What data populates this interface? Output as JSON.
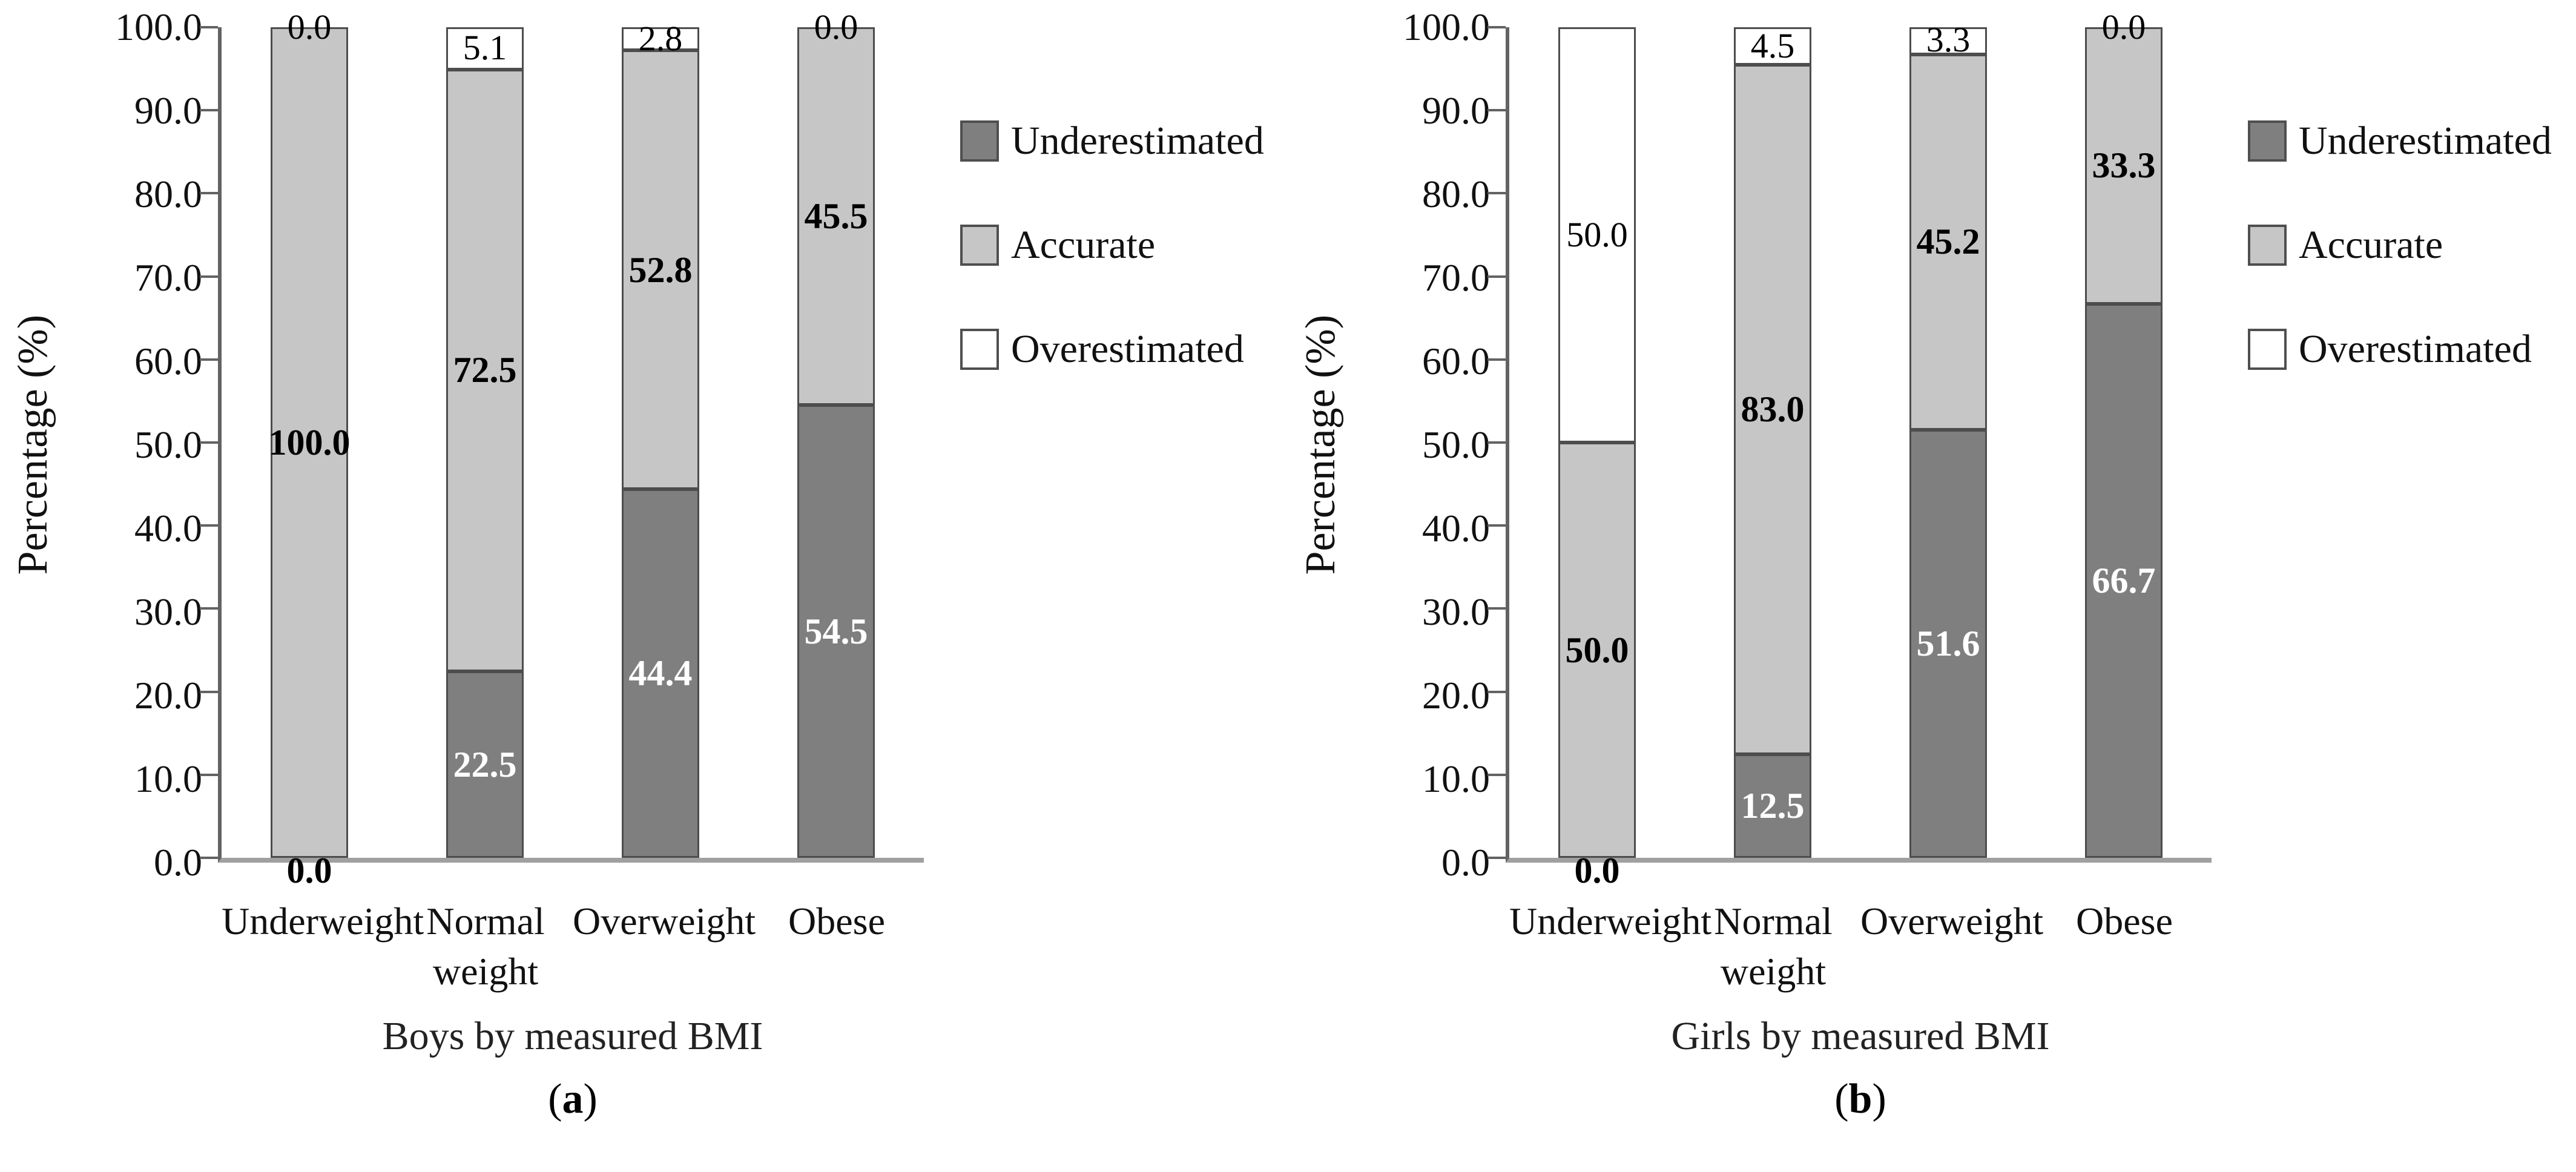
{
  "chart_data": [
    {
      "type": "bar",
      "stacked": true,
      "panel": "a",
      "title": "Boys by measured BMI",
      "caption_prefix": "(",
      "caption_letter": "a",
      "caption_suffix": ")",
      "ylabel": "Percentage (%)",
      "ylim": [
        0,
        100
      ],
      "grid": false,
      "legend_position": "right",
      "yticks": [
        "0.0",
        "10.0",
        "20.0",
        "30.0",
        "40.0",
        "50.0",
        "60.0",
        "70.0",
        "80.0",
        "90.0",
        "100.0"
      ],
      "categories": [
        "Underweight",
        "Normal weight",
        "Overweight",
        "Obese"
      ],
      "series": [
        {
          "name": "Underestimated",
          "key": "under",
          "color": "#7f7f7f",
          "values": [
            0.0,
            22.5,
            44.4,
            54.5
          ]
        },
        {
          "name": "Accurate",
          "key": "acc",
          "color": "#c6c6c6",
          "values": [
            100.0,
            72.5,
            52.8,
            45.5
          ]
        },
        {
          "name": "Overestimated",
          "key": "over",
          "color": "#ffffff",
          "values": [
            0.0,
            5.1,
            2.8,
            0.0
          ]
        }
      ]
    },
    {
      "type": "bar",
      "stacked": true,
      "panel": "b",
      "title": "Girls by measured BMI",
      "caption_prefix": "(",
      "caption_letter": "b",
      "caption_suffix": ")",
      "ylabel": "Percentage (%)",
      "ylim": [
        0,
        100
      ],
      "grid": false,
      "legend_position": "right",
      "yticks": [
        "0.0",
        "10.0",
        "20.0",
        "30.0",
        "40.0",
        "50.0",
        "60.0",
        "70.0",
        "80.0",
        "90.0",
        "100.0"
      ],
      "categories": [
        "Underweight",
        "Normal weight",
        "Overweight",
        "Obese"
      ],
      "series": [
        {
          "name": "Underestimated",
          "key": "under",
          "color": "#7f7f7f",
          "values": [
            0.0,
            12.5,
            51.6,
            66.7
          ]
        },
        {
          "name": "Accurate",
          "key": "acc",
          "color": "#c6c6c6",
          "values": [
            50.0,
            83.0,
            45.2,
            33.3
          ]
        },
        {
          "name": "Overestimated",
          "key": "over",
          "color": "#ffffff",
          "values": [
            50.0,
            4.5,
            3.3,
            0.0
          ]
        }
      ]
    }
  ],
  "colors": {
    "underestimated": "#7f7f7f",
    "accurate": "#c6c6c6",
    "overestimated": "#ffffff",
    "axis_line": "#636363",
    "baseline": "#a0a0a0",
    "segment_border": "#4d4d4d"
  }
}
